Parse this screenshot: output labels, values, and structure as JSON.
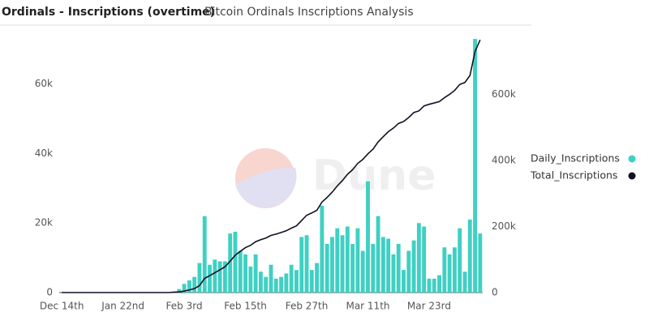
{
  "chart_data": {
    "type": "bar-line",
    "title": "Ordinals - Inscriptions (overtime)",
    "subtitle": "Bitcoin Ordinals Inscriptions Analysis",
    "watermark": "Dune",
    "categories": [
      "Dec 14th",
      null,
      null,
      null,
      null,
      null,
      null,
      null,
      null,
      null,
      null,
      null,
      "Jan 22nd",
      null,
      null,
      null,
      null,
      null,
      null,
      null,
      null,
      null,
      null,
      null,
      "Feb 3rd",
      null,
      null,
      null,
      null,
      null,
      null,
      null,
      null,
      null,
      null,
      null,
      "Feb 15th",
      null,
      null,
      null,
      null,
      null,
      null,
      null,
      null,
      null,
      null,
      null,
      "Feb 27th",
      null,
      null,
      null,
      null,
      null,
      null,
      null,
      null,
      null,
      null,
      null,
      "Mar 11th",
      null,
      null,
      null,
      null,
      null,
      null,
      null,
      null,
      null,
      null,
      null,
      "Mar 23rd",
      null,
      null,
      null,
      null,
      null,
      null,
      null,
      null,
      null,
      null
    ],
    "series": [
      {
        "name": "Daily_Inscriptions",
        "type": "bar",
        "axis": "y",
        "color": "#3fd0c3",
        "values": [
          0,
          0,
          0,
          0,
          0,
          0,
          0,
          0,
          0,
          0,
          0,
          0,
          0,
          0,
          0,
          0,
          0,
          0,
          0,
          0,
          0,
          0,
          300,
          1000,
          2500,
          3500,
          4500,
          8500,
          22000,
          8000,
          9500,
          9000,
          9000,
          17000,
          17500,
          12000,
          11000,
          7500,
          11000,
          6000,
          4500,
          8000,
          4000,
          4500,
          5500,
          8000,
          6500,
          16000,
          16500,
          6500,
          8500,
          25000,
          14000,
          16000,
          18500,
          16500,
          19000,
          14000,
          18500,
          12000,
          32000,
          14000,
          22000,
          16000,
          15500,
          11000,
          14000,
          6500,
          12000,
          15000,
          20000,
          19000,
          4000,
          4000,
          5000,
          13000,
          11000,
          13000,
          18500,
          6000,
          21000,
          73000,
          17000
        ]
      },
      {
        "name": "Total_Inscriptions",
        "type": "line",
        "axis": "y2",
        "color": "#111122",
        "values": [
          0,
          0,
          0,
          0,
          0,
          0,
          0,
          0,
          0,
          0,
          0,
          0,
          0,
          0,
          0,
          0,
          0,
          0,
          0,
          0,
          0,
          0,
          1000,
          2000,
          4500,
          8000,
          12000,
          21000,
          43000,
          51000,
          60000,
          69000,
          78000,
          95000,
          113000,
          125000,
          136000,
          143000,
          154000,
          160000,
          165000,
          173000,
          177000,
          182000,
          187000,
          195000,
          202000,
          218000,
          234000,
          241000,
          249000,
          274000,
          288000,
          304000,
          323000,
          339000,
          358000,
          372000,
          391000,
          403000,
          420000,
          434000,
          456000,
          472000,
          487000,
          498000,
          512000,
          518000,
          530000,
          545000,
          550000,
          565000,
          570000,
          574000,
          578000,
          590000,
          600000,
          612000,
          630000,
          636000,
          657000,
          730000,
          765000
        ]
      }
    ],
    "ylim": [
      0,
      73000
    ],
    "yticks": [
      0,
      {
        "value": 20000,
        "label": "20k"
      },
      {
        "value": 40000,
        "label": "40k"
      },
      {
        "value": 60000,
        "label": "60k"
      }
    ],
    "y2lim": [
      0,
      768000
    ],
    "y2ticks": [
      0,
      {
        "value": 200000,
        "label": "200k"
      },
      {
        "value": 400000,
        "label": "400k"
      },
      {
        "value": 600000,
        "label": "600k"
      }
    ],
    "grid": false,
    "legend": "right"
  }
}
